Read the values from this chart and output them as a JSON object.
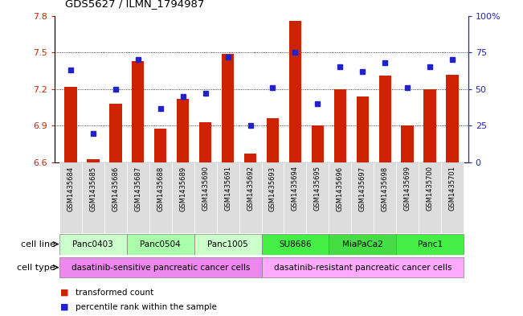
{
  "title": "GDS5627 / ILMN_1794987",
  "samples": [
    "GSM1435684",
    "GSM1435685",
    "GSM1435686",
    "GSM1435687",
    "GSM1435688",
    "GSM1435689",
    "GSM1435690",
    "GSM1435691",
    "GSM1435692",
    "GSM1435693",
    "GSM1435694",
    "GSM1435695",
    "GSM1435696",
    "GSM1435697",
    "GSM1435698",
    "GSM1435699",
    "GSM1435700",
    "GSM1435701"
  ],
  "transformed_count": [
    7.22,
    6.63,
    7.08,
    7.43,
    6.88,
    7.12,
    6.93,
    7.49,
    6.67,
    6.96,
    7.76,
    6.9,
    7.2,
    7.14,
    7.31,
    6.9,
    7.2,
    7.32
  ],
  "percentile_rank": [
    63,
    20,
    50,
    70,
    37,
    45,
    47,
    72,
    25,
    51,
    75,
    40,
    65,
    62,
    68,
    51,
    65,
    70
  ],
  "ylim_left": [
    6.6,
    7.8
  ],
  "ylim_right": [
    0,
    100
  ],
  "yticks_left": [
    6.6,
    6.9,
    7.2,
    7.5,
    7.8
  ],
  "yticks_right": [
    0,
    25,
    50,
    75,
    100
  ],
  "ytick_labels_right": [
    "0",
    "25",
    "50",
    "75",
    "100%"
  ],
  "grid_values": [
    6.9,
    7.2,
    7.5
  ],
  "bar_color": "#cc2200",
  "dot_color": "#2222cc",
  "bar_width": 0.55,
  "cell_lines": [
    {
      "label": "Panc0403",
      "start": 0,
      "end": 2,
      "color": "#ccffcc"
    },
    {
      "label": "Panc0504",
      "start": 3,
      "end": 5,
      "color": "#aaffaa"
    },
    {
      "label": "Panc1005",
      "start": 6,
      "end": 8,
      "color": "#ccffcc"
    },
    {
      "label": "SU8686",
      "start": 9,
      "end": 11,
      "color": "#44ee44"
    },
    {
      "label": "MiaPaCa2",
      "start": 12,
      "end": 14,
      "color": "#44dd44"
    },
    {
      "label": "Panc1",
      "start": 15,
      "end": 17,
      "color": "#44ee44"
    }
  ],
  "cell_types": [
    {
      "label": "dasatinib-sensitive pancreatic cancer cells",
      "start": 0,
      "end": 8,
      "color": "#ee88ee"
    },
    {
      "label": "dasatinib-resistant pancreatic cancer cells",
      "start": 9,
      "end": 17,
      "color": "#ffaaff"
    }
  ],
  "legend_items": [
    {
      "label": "transformed count",
      "color": "#cc2200"
    },
    {
      "label": "percentile rank within the sample",
      "color": "#2222cc"
    }
  ],
  "tick_color_left": "#cc2200",
  "tick_color_right": "#2222cc",
  "xtick_bg": "#dddddd"
}
